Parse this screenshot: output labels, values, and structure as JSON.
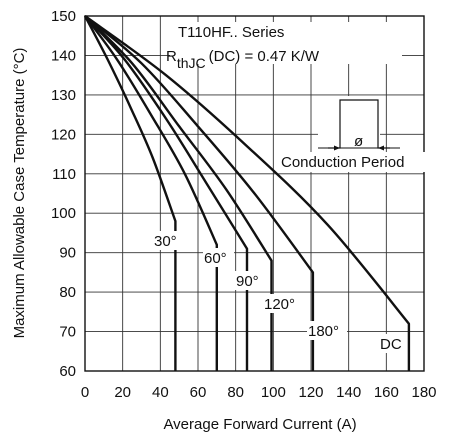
{
  "chart_data": {
    "type": "line",
    "xlabel": "Average Forward Current (A)",
    "ylabel": "Maximum Allowable Case Temperature (°C)",
    "xlim": [
      0,
      180
    ],
    "ylim": [
      60,
      150
    ],
    "xticks": [
      0,
      20,
      40,
      60,
      80,
      100,
      120,
      140,
      160,
      180
    ],
    "yticks": [
      60,
      70,
      80,
      90,
      100,
      110,
      120,
      130,
      140,
      150
    ],
    "grid": true,
    "annotations": {
      "series_line": "T110HF.. Series",
      "rth_prefix": "R",
      "rth_sub": "thJC",
      "rth_suffix": "(DC) = 0.47 K/W",
      "conduction": "Conduction Period",
      "phi": "ø"
    },
    "series": [
      {
        "name": "30°",
        "points": [
          [
            0,
            150
          ],
          [
            12,
            139
          ],
          [
            24,
            127
          ],
          [
            36,
            114
          ],
          [
            48,
            98
          ]
        ],
        "drop_to": 60
      },
      {
        "name": "60°",
        "points": [
          [
            0,
            150
          ],
          [
            17,
            139
          ],
          [
            35,
            125
          ],
          [
            53,
            110
          ],
          [
            70,
            92
          ]
        ],
        "drop_to": 60
      },
      {
        "name": "90°",
        "points": [
          [
            0,
            150
          ],
          [
            21,
            139
          ],
          [
            43,
            124
          ],
          [
            64,
            108
          ],
          [
            86,
            91
          ]
        ],
        "drop_to": 60
      },
      {
        "name": "120°",
        "points": [
          [
            0,
            150
          ],
          [
            25,
            138
          ],
          [
            50,
            122
          ],
          [
            75,
            106
          ],
          [
            99,
            88
          ]
        ],
        "drop_to": 60
      },
      {
        "name": "180°",
        "points": [
          [
            0,
            150
          ],
          [
            30,
            138
          ],
          [
            60,
            122
          ],
          [
            90,
            105
          ],
          [
            121,
            85
          ]
        ],
        "drop_to": 60
      },
      {
        "name": "DC",
        "points": [
          [
            0,
            150
          ],
          [
            43,
            135
          ],
          [
            86,
            117
          ],
          [
            129,
            97
          ],
          [
            172,
            72
          ]
        ],
        "drop_to": 60
      }
    ]
  }
}
